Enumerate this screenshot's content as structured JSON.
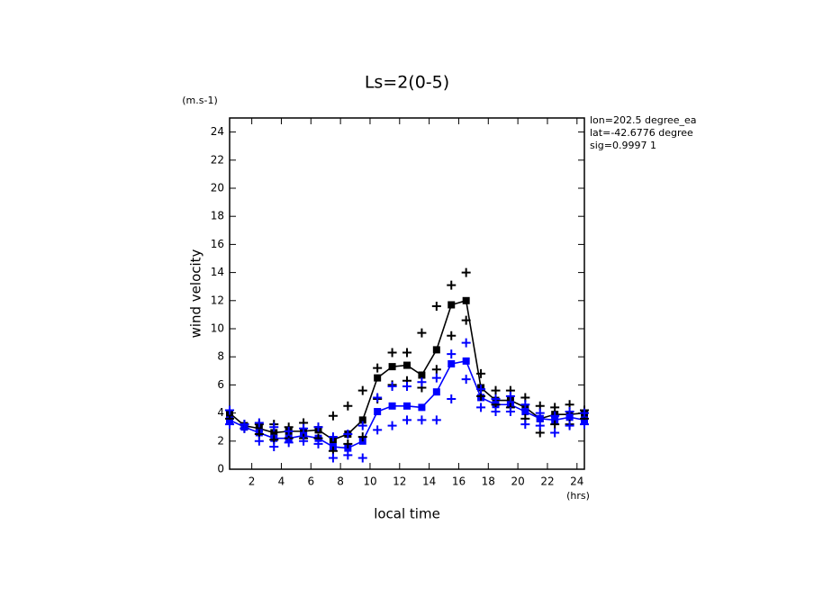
{
  "chart_data": {
    "type": "line",
    "title": "Ls=2(0-5)",
    "y_unit": "(m.s-1)",
    "y_label": "wind velocity",
    "x_label": "local time",
    "x_unit": "(hrs)",
    "annotations": [
      "lon=202.5 degree_ea",
      "lat=-42.6776 degree",
      "sig=0.9997 1"
    ],
    "x": [
      0.5,
      1.5,
      2.5,
      3.5,
      4.5,
      5.5,
      6.5,
      7.5,
      8.5,
      9.5,
      10.5,
      11.5,
      12.5,
      13.5,
      14.5,
      15.5,
      16.5,
      17.5,
      18.5,
      19.5,
      20.5,
      21.5,
      22.5,
      23.5,
      24.5
    ],
    "series": [
      {
        "color": "#000000",
        "marker": "square",
        "line": true,
        "values": [
          4.0,
          3.1,
          2.9,
          2.6,
          2.7,
          2.7,
          2.8,
          2.1,
          2.5,
          3.5,
          6.5,
          7.3,
          7.4,
          6.7,
          8.5,
          11.7,
          12.0,
          5.8,
          4.9,
          4.9,
          4.4,
          3.6,
          3.9,
          3.9,
          4.0
        ]
      },
      {
        "color": "#0000ff",
        "marker": "square",
        "line": true,
        "values": [
          3.5,
          3.0,
          2.6,
          2.2,
          2.2,
          2.4,
          2.2,
          1.6,
          1.5,
          2.0,
          4.1,
          4.5,
          4.5,
          4.4,
          5.5,
          7.5,
          7.7,
          5.1,
          4.6,
          4.6,
          4.1,
          3.6,
          3.5,
          3.7,
          3.5
        ]
      },
      {
        "color": "#000000",
        "marker": "plus",
        "line": false,
        "values": [
          4.2,
          3.2,
          3.2,
          3.2,
          3.0,
          3.3,
          3.0,
          3.8,
          4.5,
          5.6,
          7.2,
          8.3,
          8.3,
          9.7,
          11.6,
          13.1,
          14.0,
          6.8,
          5.6,
          5.6,
          5.1,
          4.5,
          4.4,
          4.6,
          4.2
        ]
      },
      {
        "color": "#000000",
        "marker": "plus",
        "line": false,
        "values": [
          3.6,
          2.9,
          2.5,
          2.1,
          2.2,
          2.2,
          2.2,
          1.3,
          1.8,
          2.3,
          5.0,
          6.0,
          6.3,
          5.8,
          7.1,
          9.5,
          10.6,
          5.2,
          4.6,
          4.4,
          3.6,
          2.6,
          3.2,
          3.2,
          3.6
        ]
      },
      {
        "color": "#0000ff",
        "marker": "plus",
        "line": false,
        "values": [
          4.2,
          3.2,
          3.3,
          3.0,
          2.7,
          2.9,
          3.0,
          2.3,
          2.5,
          3.1,
          5.1,
          5.9,
          5.9,
          6.2,
          6.5,
          8.2,
          9.0,
          5.7,
          5.0,
          5.2,
          4.6,
          4.0,
          3.8,
          4.1,
          4.0
        ]
      },
      {
        "color": "#0000ff",
        "marker": "plus",
        "line": false,
        "values": [
          3.2,
          2.9,
          2.0,
          1.6,
          1.9,
          2.0,
          1.8,
          0.8,
          1.0,
          0.8,
          2.8,
          3.1,
          3.5,
          3.5,
          3.5,
          5.0,
          6.4,
          4.4,
          4.1,
          4.1,
          3.2,
          3.1,
          2.6,
          3.1,
          3.2
        ]
      }
    ],
    "xlim": [
      0.5,
      24.5
    ],
    "ylim": [
      0,
      25
    ],
    "xticks": [
      2,
      4,
      6,
      8,
      10,
      12,
      14,
      16,
      18,
      20,
      22,
      24
    ],
    "yticks": [
      0,
      2,
      4,
      6,
      8,
      10,
      12,
      14,
      16,
      18,
      20,
      22,
      24
    ]
  }
}
